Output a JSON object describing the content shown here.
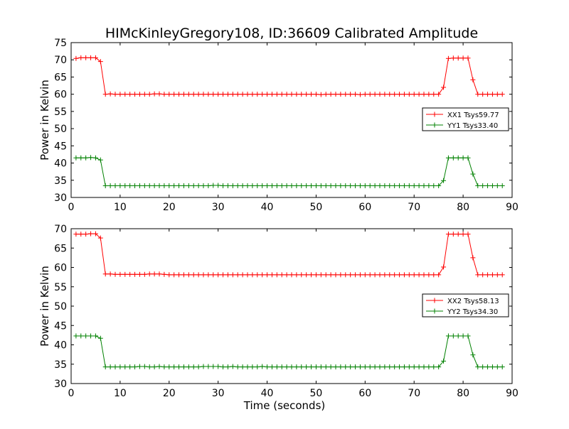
{
  "figure": {
    "title": "HIMcKinleyGregory108, ID:36609 Calibrated Amplitude"
  },
  "chart_data": [
    {
      "type": "line",
      "ylabel": "Power in Kelvin",
      "xlabel": "",
      "xlim": [
        0,
        90
      ],
      "ylim": [
        30,
        75
      ],
      "xticks": [
        0,
        10,
        20,
        30,
        40,
        50,
        60,
        70,
        80,
        90
      ],
      "yticks": [
        30,
        35,
        40,
        45,
        50,
        55,
        60,
        65,
        70,
        75
      ],
      "grid": false,
      "legend_position": "center-right",
      "x": [
        1,
        2,
        3,
        4,
        5,
        6,
        7,
        8,
        9,
        10,
        11,
        12,
        13,
        14,
        15,
        16,
        17,
        18,
        19,
        20,
        21,
        22,
        23,
        24,
        25,
        26,
        27,
        28,
        29,
        30,
        31,
        32,
        33,
        34,
        35,
        36,
        37,
        38,
        39,
        40,
        41,
        42,
        43,
        44,
        45,
        46,
        47,
        48,
        49,
        50,
        51,
        52,
        53,
        54,
        55,
        56,
        57,
        58,
        59,
        60,
        61,
        62,
        63,
        64,
        65,
        66,
        67,
        68,
        69,
        70,
        71,
        72,
        73,
        74,
        75,
        76,
        77,
        78,
        79,
        80,
        81,
        82,
        83,
        84,
        85,
        86,
        87,
        88
      ],
      "series": [
        {
          "name": "XX1 Tsys59.77",
          "color": "#ff0000",
          "values": [
            70.4,
            70.6,
            70.6,
            70.6,
            70.6,
            69.5,
            60.0,
            60.1,
            60.0,
            60.0,
            60.0,
            60.0,
            60.0,
            60.0,
            60.0,
            60.0,
            60.1,
            60.1,
            60.0,
            60.0,
            60.0,
            60.0,
            60.0,
            60.0,
            60.0,
            60.0,
            60.0,
            60.0,
            60.0,
            60.0,
            60.0,
            60.0,
            60.0,
            60.0,
            60.0,
            60.0,
            60.0,
            60.0,
            60.0,
            60.0,
            60.0,
            60.0,
            60.0,
            60.0,
            60.0,
            60.0,
            60.0,
            60.0,
            60.0,
            60.0,
            59.9,
            60.0,
            60.0,
            60.0,
            60.0,
            60.0,
            60.0,
            60.0,
            59.9,
            60.0,
            60.0,
            60.0,
            60.0,
            60.0,
            60.0,
            60.0,
            60.0,
            60.0,
            60.0,
            60.0,
            60.0,
            60.0,
            60.0,
            60.0,
            60.0,
            62.0,
            70.4,
            70.5,
            70.5,
            70.5,
            70.5,
            64.2,
            60.0,
            60.0,
            60.0,
            60.0,
            60.0,
            60.0
          ]
        },
        {
          "name": "YY1 Tsys33.40",
          "color": "#008000",
          "values": [
            41.5,
            41.5,
            41.5,
            41.6,
            41.5,
            40.9,
            33.4,
            33.4,
            33.4,
            33.4,
            33.4,
            33.4,
            33.4,
            33.4,
            33.4,
            33.4,
            33.4,
            33.4,
            33.4,
            33.4,
            33.4,
            33.4,
            33.4,
            33.4,
            33.4,
            33.4,
            33.4,
            33.4,
            33.5,
            33.5,
            33.4,
            33.4,
            33.4,
            33.4,
            33.4,
            33.4,
            33.4,
            33.4,
            33.4,
            33.4,
            33.4,
            33.4,
            33.4,
            33.4,
            33.4,
            33.4,
            33.4,
            33.4,
            33.4,
            33.4,
            33.4,
            33.4,
            33.4,
            33.4,
            33.4,
            33.4,
            33.4,
            33.4,
            33.4,
            33.4,
            33.4,
            33.4,
            33.4,
            33.4,
            33.4,
            33.4,
            33.4,
            33.4,
            33.4,
            33.4,
            33.4,
            33.4,
            33.4,
            33.4,
            33.4,
            34.9,
            41.5,
            41.5,
            41.5,
            41.5,
            41.5,
            36.8,
            33.4,
            33.4,
            33.4,
            33.4,
            33.4,
            33.4
          ]
        }
      ]
    },
    {
      "type": "line",
      "ylabel": "Power in Kelvin",
      "xlabel": "Time (seconds)",
      "xlim": [
        0,
        90
      ],
      "ylim": [
        30,
        70
      ],
      "xticks": [
        0,
        10,
        20,
        30,
        40,
        50,
        60,
        70,
        80,
        90
      ],
      "yticks": [
        30,
        35,
        40,
        45,
        50,
        55,
        60,
        65,
        70
      ],
      "grid": false,
      "legend_position": "center-right",
      "x": [
        1,
        2,
        3,
        4,
        5,
        6,
        7,
        8,
        9,
        10,
        11,
        12,
        13,
        14,
        15,
        16,
        17,
        18,
        19,
        20,
        21,
        22,
        23,
        24,
        25,
        26,
        27,
        28,
        29,
        30,
        31,
        32,
        33,
        34,
        35,
        36,
        37,
        38,
        39,
        40,
        41,
        42,
        43,
        44,
        45,
        46,
        47,
        48,
        49,
        50,
        51,
        52,
        53,
        54,
        55,
        56,
        57,
        58,
        59,
        60,
        61,
        62,
        63,
        64,
        65,
        66,
        67,
        68,
        69,
        70,
        71,
        72,
        73,
        74,
        75,
        76,
        77,
        78,
        79,
        80,
        81,
        82,
        83,
        84,
        85,
        86,
        87,
        88
      ],
      "series": [
        {
          "name": "XX2 Tsys58.13",
          "color": "#ff0000",
          "values": [
            68.6,
            68.6,
            68.6,
            68.7,
            68.7,
            67.6,
            58.3,
            58.3,
            58.2,
            58.2,
            58.2,
            58.2,
            58.2,
            58.2,
            58.2,
            58.3,
            58.3,
            58.3,
            58.2,
            58.1,
            58.1,
            58.1,
            58.1,
            58.1,
            58.1,
            58.1,
            58.1,
            58.1,
            58.1,
            58.1,
            58.1,
            58.1,
            58.1,
            58.1,
            58.1,
            58.1,
            58.1,
            58.1,
            58.1,
            58.1,
            58.1,
            58.1,
            58.1,
            58.1,
            58.1,
            58.1,
            58.1,
            58.1,
            58.1,
            58.1,
            58.1,
            58.1,
            58.1,
            58.1,
            58.1,
            58.1,
            58.1,
            58.1,
            58.1,
            58.1,
            58.1,
            58.1,
            58.1,
            58.1,
            58.1,
            58.1,
            58.1,
            58.1,
            58.1,
            58.1,
            58.1,
            58.1,
            58.1,
            58.1,
            58.1,
            60.1,
            68.6,
            68.6,
            68.6,
            68.6,
            68.6,
            62.5,
            58.1,
            58.1,
            58.1,
            58.1,
            58.1,
            58.1
          ]
        },
        {
          "name": "YY2 Tsys34.30",
          "color": "#008000",
          "values": [
            42.3,
            42.3,
            42.3,
            42.3,
            42.3,
            41.7,
            34.3,
            34.3,
            34.3,
            34.3,
            34.3,
            34.3,
            34.3,
            34.4,
            34.4,
            34.3,
            34.3,
            34.4,
            34.3,
            34.3,
            34.3,
            34.3,
            34.3,
            34.3,
            34.3,
            34.3,
            34.4,
            34.4,
            34.4,
            34.4,
            34.3,
            34.3,
            34.4,
            34.3,
            34.3,
            34.3,
            34.3,
            34.3,
            34.4,
            34.3,
            34.3,
            34.3,
            34.3,
            34.3,
            34.3,
            34.3,
            34.3,
            34.3,
            34.3,
            34.3,
            34.3,
            34.3,
            34.3,
            34.3,
            34.3,
            34.3,
            34.3,
            34.3,
            34.3,
            34.3,
            34.3,
            34.3,
            34.3,
            34.3,
            34.3,
            34.3,
            34.3,
            34.3,
            34.3,
            34.3,
            34.3,
            34.3,
            34.3,
            34.3,
            34.3,
            35.8,
            42.3,
            42.3,
            42.3,
            42.3,
            42.3,
            37.4,
            34.3,
            34.3,
            34.3,
            34.3,
            34.3,
            34.3
          ]
        }
      ]
    }
  ]
}
